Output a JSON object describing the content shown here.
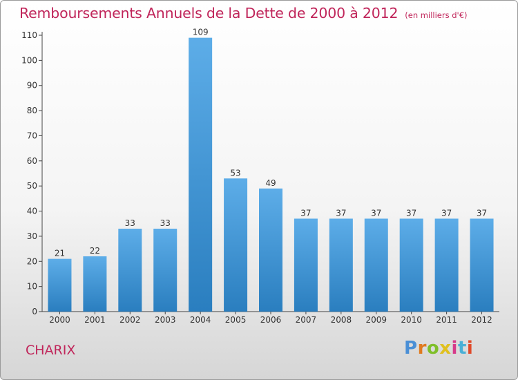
{
  "header": {
    "title": "Remboursements Annuels de la Dette de 2000 à 2012",
    "units": "(en milliers d'€)"
  },
  "footer": {
    "commune": "CHARIX",
    "logo_text": "Proxiti"
  },
  "colors": {
    "title": "#c0255a",
    "bar_light": "#5dade8",
    "bar_dark": "#2a7ebf",
    "logo": [
      "#4a8fd6",
      "#e07a1f",
      "#7fbf2a",
      "#e0c01f",
      "#d63a8a",
      "#4ab0d6",
      "#e04a2a"
    ]
  },
  "chart_data": {
    "type": "bar",
    "title": "Remboursements Annuels de la Dette de 2000 à 2012",
    "xlabel": "",
    "ylabel": "(en milliers d'€)",
    "categories": [
      "2000",
      "2001",
      "2002",
      "2003",
      "2004",
      "2005",
      "2006",
      "2007",
      "2008",
      "2009",
      "2010",
      "2011",
      "2012"
    ],
    "values": [
      21,
      22,
      33,
      33,
      109,
      53,
      49,
      37,
      37,
      37,
      37,
      37,
      37
    ],
    "ylim": [
      0,
      110
    ],
    "yticks": [
      0,
      10,
      20,
      30,
      40,
      50,
      60,
      70,
      80,
      90,
      100,
      110
    ],
    "grid": false,
    "data_labels": true
  }
}
